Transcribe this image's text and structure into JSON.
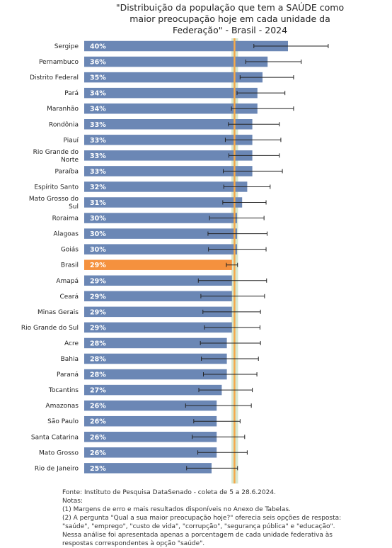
{
  "chart_data": {
    "type": "bar",
    "orientation": "horizontal",
    "title": "\"Distribuição da população que tem a SAÚDE como maior preocupação hoje em cada unidade da Federação\" - Brasil - 2024",
    "categories": [
      "Sergipe",
      "Pernambuco",
      "Distrito Federal",
      "Pará",
      "Maranhão",
      "Rondônia",
      "Piauí",
      "Rio Grande do Norte",
      "Paraíba",
      "Espírito Santo",
      "Mato Grosso do Sul",
      "Roraima",
      "Alagoas",
      "Goiás",
      "Brasil",
      "Amapá",
      "Ceará",
      "Minas Gerais",
      "Rio Grande do Sul",
      "Acre",
      "Bahia",
      "Paraná",
      "Tocantins",
      "Amazonas",
      "São Paulo",
      "Santa Catarina",
      "Mato Grosso",
      "Rio de Janeiro"
    ],
    "values": [
      40,
      36,
      35,
      34,
      34,
      33,
      33,
      33,
      33,
      32,
      31,
      30,
      30,
      30,
      29,
      29,
      29,
      29,
      29,
      28,
      28,
      28,
      27,
      26,
      26,
      26,
      26,
      25
    ],
    "value_labels": [
      "40%",
      "36%",
      "35%",
      "34%",
      "34%",
      "33%",
      "33%",
      "33%",
      "33%",
      "32%",
      "31%",
      "30%",
      "30%",
      "30%",
      "29%",
      "29%",
      "29%",
      "29%",
      "29%",
      "28%",
      "28%",
      "28%",
      "27%",
      "26%",
      "26%",
      "26%",
      "26%",
      "25%"
    ],
    "error_low": [
      33.3,
      31.7,
      30.6,
      30.0,
      28.9,
      28.3,
      27.7,
      28.4,
      27.3,
      27.4,
      27.2,
      24.6,
      24.3,
      24.4,
      27.9,
      22.4,
      22.9,
      23.3,
      23.6,
      22.8,
      23.0,
      23.4,
      22.5,
      19.9,
      21.5,
      21.2,
      22.3,
      20.1
    ],
    "error_high": [
      47.9,
      42.6,
      41.1,
      39.4,
      41.1,
      38.3,
      38.6,
      38.3,
      38.9,
      36.5,
      35.7,
      35.3,
      35.9,
      35.7,
      30.1,
      35.8,
      35.4,
      34.6,
      34.5,
      34.6,
      34.2,
      33.9,
      33.0,
      32.8,
      30.6,
      31.5,
      32.0,
      30.1
    ],
    "highlight_category": "Brasil",
    "reference_line": 29.5,
    "reference_band": [
      28.9,
      30.2
    ],
    "xlim": [
      -4,
      52
    ],
    "colors": {
      "bar": "#6b87b5",
      "highlight": "#f5913e",
      "band": "#cfe3c6",
      "reference": "#f5a94a",
      "error": "#222222"
    },
    "grid": false,
    "legend": "none"
  },
  "notes": {
    "source": "Fonte: Instituto de Pesquisa DataSenado - coleta de 5 a 28.6.2024.",
    "heading": "Notas:",
    "note1": "(1) Margens de erro e mais resultados disponíveis no Anexo de Tabelas.",
    "note2": "(2) A pergunta \"Qual a sua maior preocupação hoje?\" oferecia seis opções de resposta: \"saúde\", \"emprego\", \"custo de vida\", \"corrupção\", \"segurança pública\" e \"educação\". Nessa análise foi apresentada apenas a porcentagem de cada unidade federativa às respostas correspondentes à opção \"saúde\"."
  }
}
